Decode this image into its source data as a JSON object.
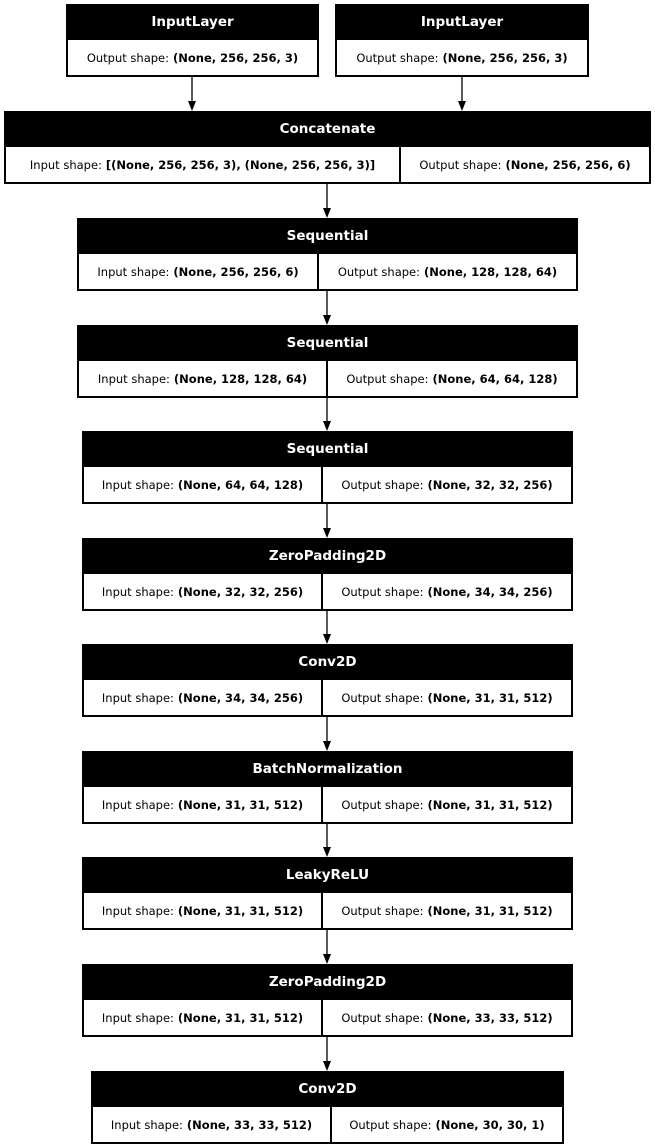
{
  "layers": [
    {
      "name": "InputLayer",
      "cells": [
        {
          "label": "Output shape:",
          "value": "(None, 256, 256, 3)"
        }
      ]
    },
    {
      "name": "InputLayer",
      "cells": [
        {
          "label": "Output shape:",
          "value": "(None, 256, 256, 3)"
        }
      ]
    },
    {
      "name": "Concatenate",
      "cells": [
        {
          "label": "Input shape:",
          "value": "[(None, 256, 256, 3), (None, 256, 256, 3)]"
        },
        {
          "label": "Output shape:",
          "value": "(None, 256, 256, 6)"
        }
      ]
    },
    {
      "name": "Sequential",
      "cells": [
        {
          "label": "Input shape:",
          "value": "(None, 256, 256, 6)"
        },
        {
          "label": "Output shape:",
          "value": "(None, 128, 128, 64)"
        }
      ]
    },
    {
      "name": "Sequential",
      "cells": [
        {
          "label": "Input shape:",
          "value": "(None, 128, 128, 64)"
        },
        {
          "label": "Output shape:",
          "value": "(None, 64, 64, 128)"
        }
      ]
    },
    {
      "name": "Sequential",
      "cells": [
        {
          "label": "Input shape:",
          "value": "(None, 64, 64, 128)"
        },
        {
          "label": "Output shape:",
          "value": "(None, 32, 32, 256)"
        }
      ]
    },
    {
      "name": "ZeroPadding2D",
      "cells": [
        {
          "label": "Input shape:",
          "value": "(None, 32, 32, 256)"
        },
        {
          "label": "Output shape:",
          "value": "(None, 34, 34, 256)"
        }
      ]
    },
    {
      "name": "Conv2D",
      "cells": [
        {
          "label": "Input shape:",
          "value": "(None, 34, 34, 256)"
        },
        {
          "label": "Output shape:",
          "value": "(None, 31, 31, 512)"
        }
      ]
    },
    {
      "name": "BatchNormalization",
      "cells": [
        {
          "label": "Input shape:",
          "value": "(None, 31, 31, 512)"
        },
        {
          "label": "Output shape:",
          "value": "(None, 31, 31, 512)"
        }
      ]
    },
    {
      "name": "LeakyReLU",
      "cells": [
        {
          "label": "Input shape:",
          "value": "(None, 31, 31, 512)"
        },
        {
          "label": "Output shape:",
          "value": "(None, 31, 31, 512)"
        }
      ]
    },
    {
      "name": "ZeroPadding2D",
      "cells": [
        {
          "label": "Input shape:",
          "value": "(None, 31, 31, 512)"
        },
        {
          "label": "Output shape:",
          "value": "(None, 33, 33, 512)"
        }
      ]
    },
    {
      "name": "Conv2D",
      "cells": [
        {
          "label": "Input shape:",
          "value": "(None, 33, 33, 512)"
        },
        {
          "label": "Output shape:",
          "value": "(None, 30, 30, 1)"
        }
      ]
    }
  ],
  "edges": [
    [
      0,
      2
    ],
    [
      1,
      2
    ],
    [
      2,
      3
    ],
    [
      3,
      4
    ],
    [
      4,
      5
    ],
    [
      5,
      6
    ],
    [
      6,
      7
    ],
    [
      7,
      8
    ],
    [
      8,
      9
    ],
    [
      9,
      10
    ],
    [
      10,
      11
    ]
  ]
}
